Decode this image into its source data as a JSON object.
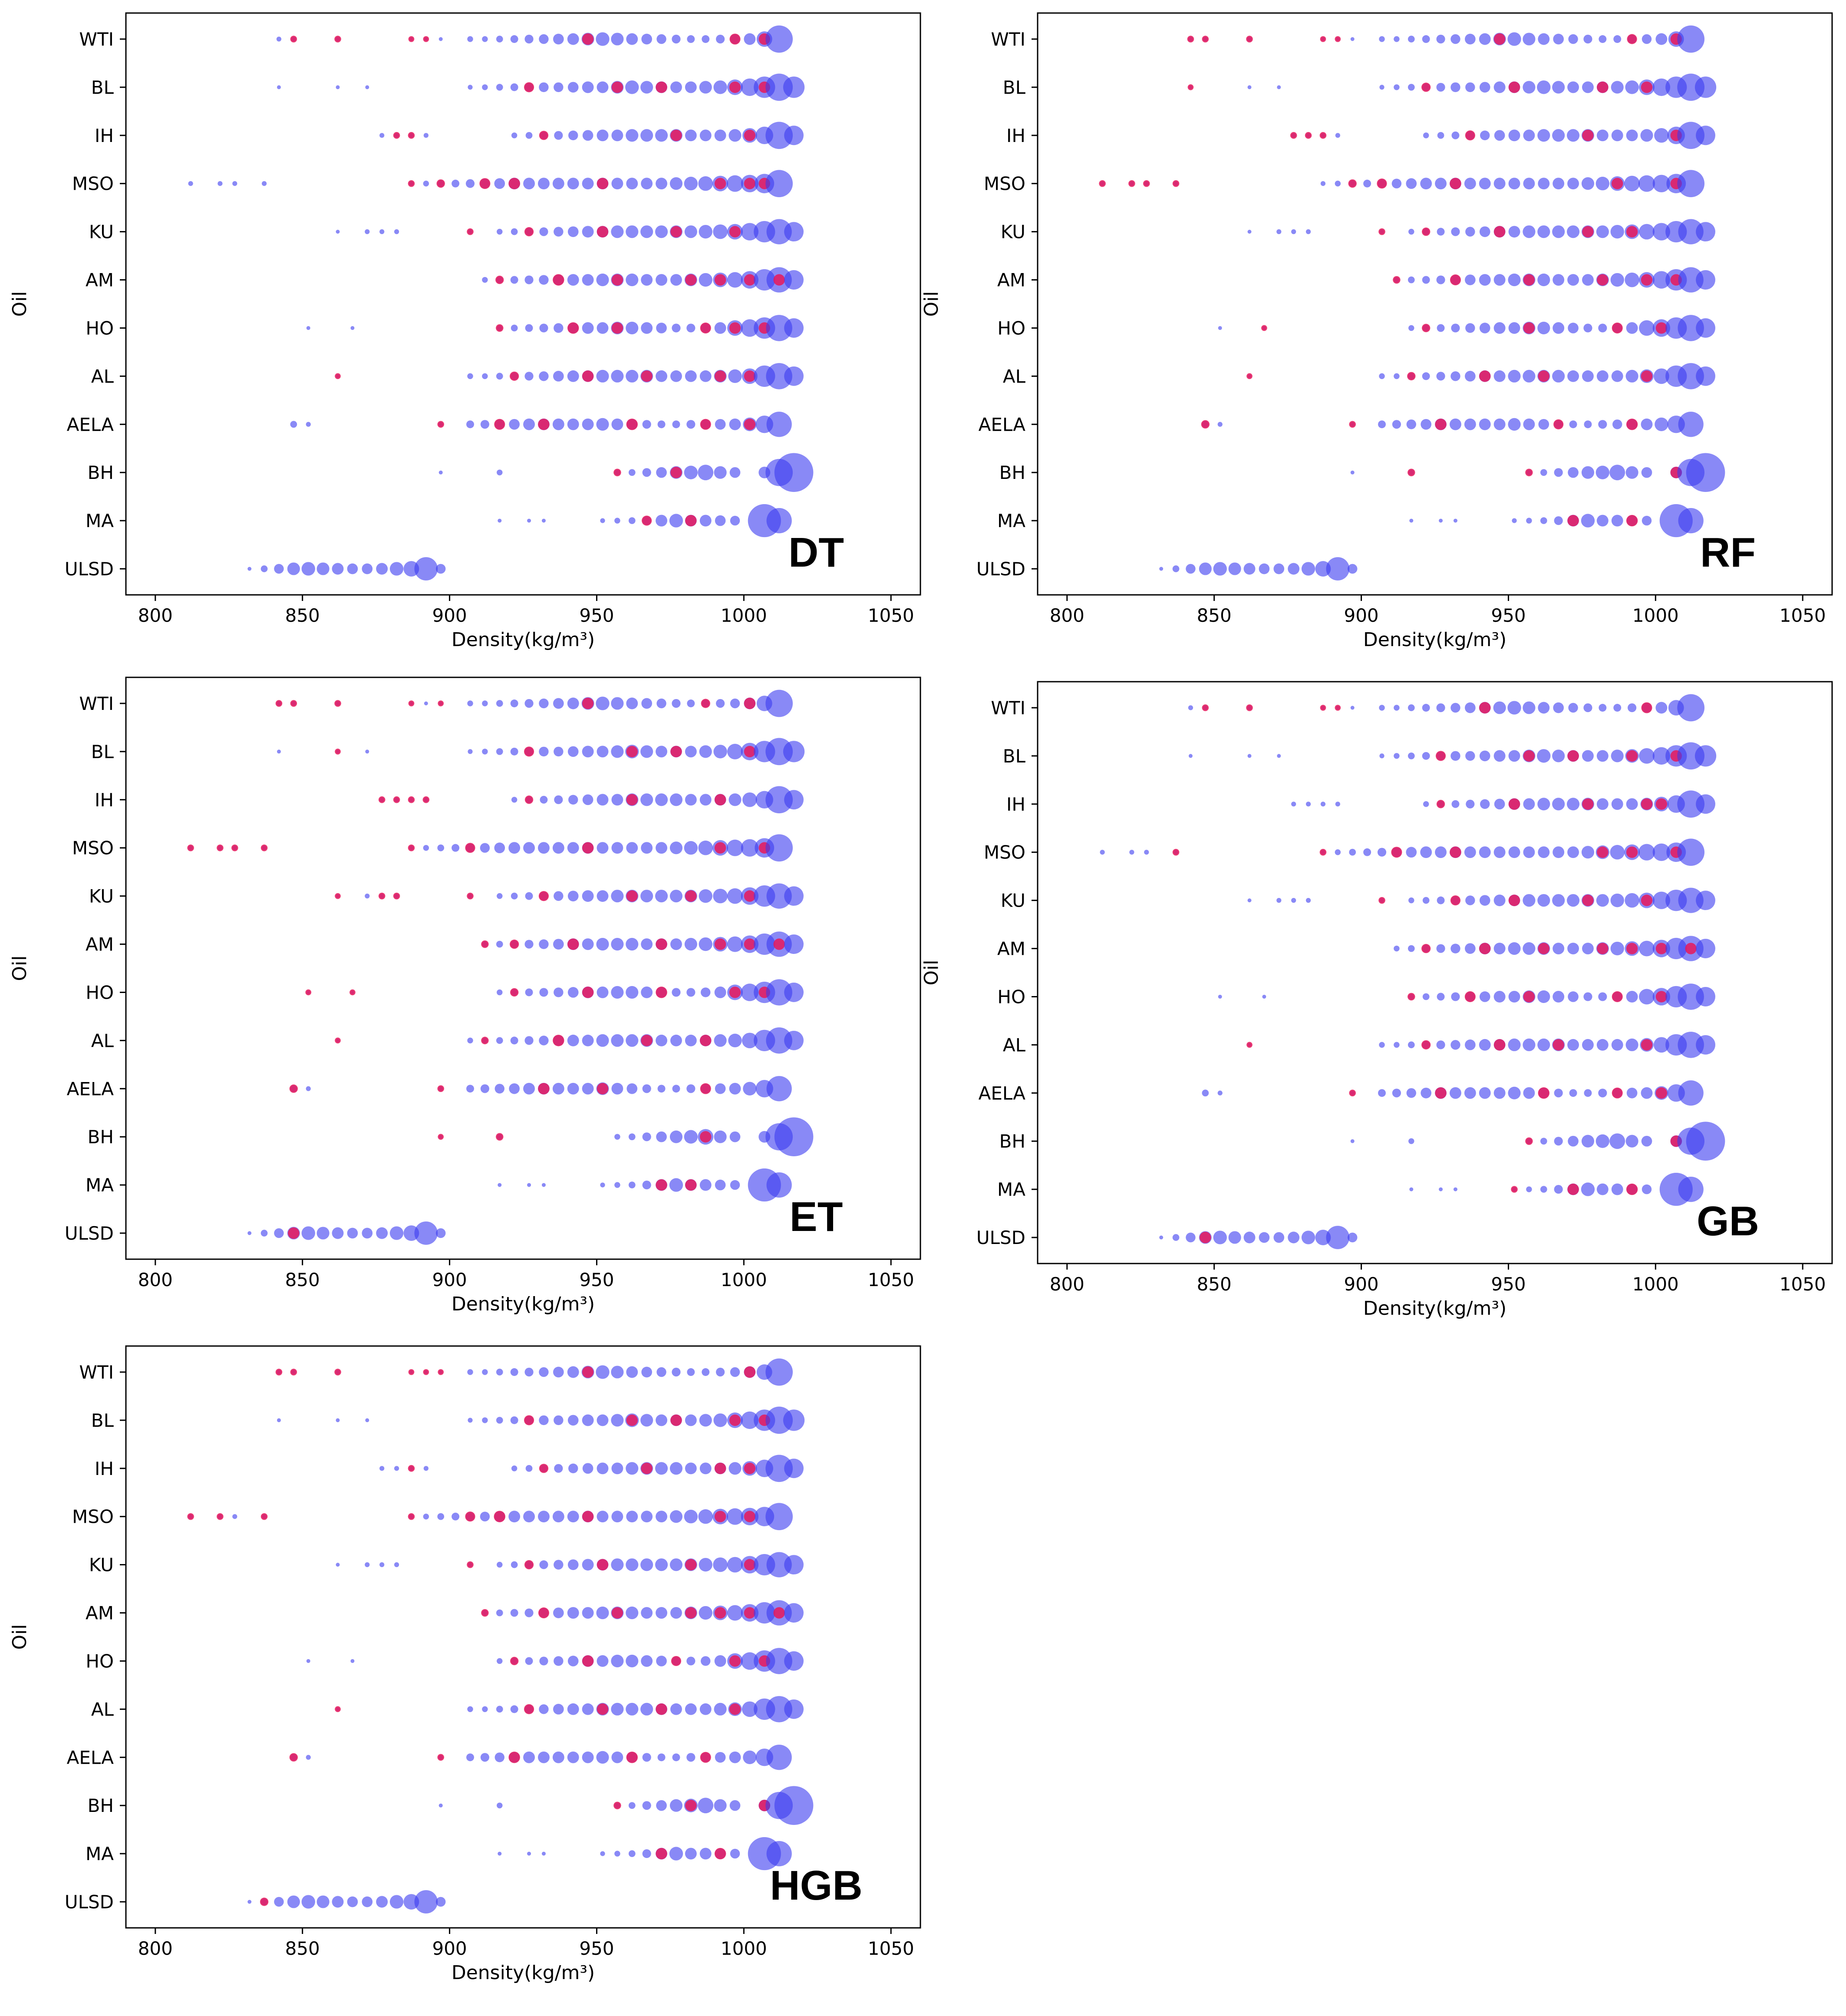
{
  "chart_data": [
    {
      "type": "scatter",
      "panel_label": "DT",
      "xlabel": "Density(kg/m³)",
      "ylabel": "Oil",
      "xlim": [
        790,
        1060
      ],
      "xticks": [
        "800",
        "850",
        "900",
        "950",
        "1000",
        "1050"
      ],
      "categories": [
        "WTI",
        "BL",
        "IH",
        "MSO",
        "KU",
        "AM",
        "HO",
        "AL",
        "AELA",
        "BH",
        "MA",
        "ULSD"
      ],
      "bubble_size": "relative",
      "series": [
        {
          "name": "",
          "color": "#3a3af0",
          "alpha": 0.6
        },
        {
          "name": "",
          "color": "#e8195a",
          "alpha": 0.85
        }
      ]
    },
    {
      "type": "scatter",
      "panel_label": "RF",
      "xlabel": "Density(kg/m³)",
      "ylabel": "Oil",
      "xlim": [
        790,
        1060
      ],
      "xticks": [
        "800",
        "850",
        "900",
        "950",
        "1000",
        "1050"
      ],
      "categories": [
        "WTI",
        "BL",
        "IH",
        "MSO",
        "KU",
        "AM",
        "HO",
        "AL",
        "AELA",
        "BH",
        "MA",
        "ULSD"
      ],
      "bubble_size": "relative",
      "series": [
        {
          "name": "",
          "color": "#3a3af0",
          "alpha": 0.6
        },
        {
          "name": "",
          "color": "#e8195a",
          "alpha": 0.85
        }
      ]
    },
    {
      "type": "scatter",
      "panel_label": "ET",
      "xlabel": "Density(kg/m³)",
      "ylabel": "Oil",
      "xlim": [
        790,
        1060
      ],
      "xticks": [
        "800",
        "850",
        "900",
        "950",
        "1000",
        "1050"
      ],
      "categories": [
        "WTI",
        "BL",
        "IH",
        "MSO",
        "KU",
        "AM",
        "HO",
        "AL",
        "AELA",
        "BH",
        "MA",
        "ULSD"
      ],
      "bubble_size": "relative",
      "series": [
        {
          "name": "",
          "color": "#3a3af0",
          "alpha": 0.6
        },
        {
          "name": "",
          "color": "#e8195a",
          "alpha": 0.85
        }
      ]
    },
    {
      "type": "scatter",
      "panel_label": "GB",
      "xlabel": "Density(kg/m³)",
      "ylabel": "Oil",
      "xlim": [
        790,
        1060
      ],
      "xticks": [
        "800",
        "850",
        "900",
        "950",
        "1000",
        "1050"
      ],
      "categories": [
        "WTI",
        "BL",
        "IH",
        "MSO",
        "KU",
        "AM",
        "HO",
        "AL",
        "AELA",
        "BH",
        "MA",
        "ULSD"
      ],
      "bubble_size": "relative",
      "series": [
        {
          "name": "",
          "color": "#3a3af0",
          "alpha": 0.6
        },
        {
          "name": "",
          "color": "#e8195a",
          "alpha": 0.85
        }
      ]
    },
    {
      "type": "scatter",
      "panel_label": "HGB",
      "xlabel": "Density(kg/m³)",
      "ylabel": "Oil",
      "xlim": [
        790,
        1060
      ],
      "xticks": [
        "800",
        "850",
        "900",
        "950",
        "1000",
        "1050"
      ],
      "categories": [
        "WTI",
        "BL",
        "IH",
        "MSO",
        "KU",
        "AM",
        "HO",
        "AL",
        "AELA",
        "BH",
        "MA",
        "ULSD"
      ],
      "bubble_size": "relative",
      "series": [
        {
          "name": "",
          "color": "#3a3af0",
          "alpha": 0.6
        },
        {
          "name": "",
          "color": "#e8195a",
          "alpha": 0.85
        }
      ]
    }
  ],
  "oil_profiles": {
    "WTI": {
      "x": [
        842,
        847,
        862,
        887,
        892,
        897,
        907,
        912,
        917,
        922,
        927,
        932,
        937,
        942,
        947,
        952,
        957,
        962,
        967,
        972,
        977,
        982,
        987,
        992,
        997,
        1002,
        1007,
        1012
      ],
      "s": [
        5,
        5,
        5,
        4,
        4,
        4,
        6,
        6,
        7,
        8,
        9,
        10,
        11,
        12,
        13,
        14,
        13,
        12,
        11,
        10,
        9,
        8,
        8,
        9,
        10,
        12,
        16,
        28
      ]
    },
    "BL": {
      "x": [
        842,
        862,
        872,
        907,
        912,
        917,
        922,
        927,
        932,
        937,
        942,
        947,
        952,
        957,
        962,
        967,
        972,
        977,
        982,
        987,
        992,
        997,
        1002,
        1007,
        1012,
        1017
      ],
      "s": [
        4,
        4,
        4,
        5,
        6,
        7,
        8,
        9,
        10,
        10,
        11,
        12,
        12,
        13,
        14,
        13,
        12,
        12,
        12,
        13,
        14,
        16,
        18,
        22,
        28,
        22
      ]
    },
    "IH": {
      "x": [
        877,
        882,
        887,
        892,
        922,
        927,
        932,
        937,
        942,
        947,
        952,
        957,
        962,
        967,
        972,
        977,
        982,
        987,
        992,
        997,
        1002,
        1007,
        1012,
        1017
      ],
      "s": [
        5,
        5,
        5,
        5,
        6,
        7,
        8,
        9,
        10,
        11,
        12,
        12,
        13,
        13,
        13,
        13,
        12,
        12,
        12,
        13,
        15,
        18,
        28,
        20
      ]
    },
    "MSO": {
      "x": [
        812,
        822,
        827,
        837,
        887,
        892,
        897,
        902,
        907,
        912,
        917,
        922,
        927,
        932,
        937,
        942,
        947,
        952,
        957,
        962,
        967,
        972,
        977,
        982,
        987,
        992,
        997,
        1002,
        1007,
        1012
      ],
      "s": [
        5,
        5,
        5,
        5,
        5,
        6,
        7,
        8,
        9,
        10,
        11,
        12,
        12,
        12,
        12,
        12,
        12,
        12,
        12,
        12,
        12,
        12,
        13,
        14,
        15,
        16,
        17,
        18,
        20,
        28
      ]
    },
    "KU": {
      "x": [
        862,
        872,
        877,
        882,
        907,
        917,
        922,
        927,
        932,
        937,
        942,
        947,
        952,
        957,
        962,
        967,
        972,
        977,
        982,
        987,
        992,
        997,
        1002,
        1007,
        1012,
        1017
      ],
      "s": [
        4,
        5,
        5,
        5,
        5,
        6,
        7,
        8,
        9,
        10,
        11,
        12,
        12,
        13,
        13,
        13,
        13,
        13,
        13,
        14,
        15,
        16,
        18,
        22,
        26,
        20
      ]
    },
    "AM": {
      "x": [
        912,
        917,
        922,
        927,
        932,
        937,
        942,
        947,
        952,
        957,
        962,
        967,
        972,
        977,
        982,
        987,
        992,
        997,
        1002,
        1007,
        1012,
        1017
      ],
      "s": [
        6,
        7,
        8,
        9,
        10,
        11,
        12,
        12,
        13,
        13,
        13,
        12,
        12,
        12,
        13,
        14,
        15,
        16,
        18,
        22,
        26,
        20
      ]
    },
    "HO": {
      "x": [
        852,
        867,
        917,
        922,
        927,
        932,
        937,
        942,
        947,
        952,
        957,
        962,
        967,
        972,
        977,
        982,
        987,
        992,
        997,
        1002,
        1007,
        1012,
        1017
      ],
      "s": [
        4,
        4,
        6,
        7,
        8,
        9,
        10,
        11,
        12,
        12,
        13,
        13,
        12,
        11,
        9,
        9,
        10,
        12,
        16,
        18,
        22,
        27,
        20
      ]
    },
    "AL": {
      "x": [
        862,
        907,
        912,
        917,
        922,
        927,
        932,
        937,
        942,
        947,
        952,
        957,
        962,
        967,
        972,
        977,
        982,
        987,
        992,
        997,
        1002,
        1007,
        1012,
        1017
      ],
      "s": [
        4,
        6,
        6,
        7,
        8,
        9,
        10,
        11,
        12,
        12,
        13,
        13,
        13,
        13,
        12,
        12,
        12,
        12,
        13,
        14,
        16,
        22,
        27,
        20
      ]
    },
    "AELA": {
      "x": [
        847,
        852,
        897,
        907,
        912,
        917,
        922,
        927,
        932,
        937,
        942,
        947,
        952,
        957,
        962,
        967,
        972,
        977,
        982,
        987,
        992,
        997,
        1002,
        1007,
        1012
      ],
      "s": [
        7,
        5,
        5,
        8,
        9,
        10,
        11,
        12,
        12,
        12,
        12,
        12,
        13,
        12,
        11,
        9,
        8,
        8,
        9,
        10,
        11,
        12,
        14,
        18,
        26
      ]
    },
    "BH": {
      "x": [
        897,
        917,
        957,
        962,
        967,
        972,
        977,
        982,
        987,
        992,
        997,
        1007,
        1012,
        1017
      ],
      "s": [
        4,
        6,
        6,
        7,
        9,
        11,
        13,
        14,
        16,
        13,
        11,
        12,
        28,
        40
      ]
    },
    "MA": {
      "x": [
        917,
        927,
        932,
        952,
        957,
        962,
        967,
        972,
        977,
        982,
        987,
        992,
        997,
        1007,
        1012
      ],
      "s": [
        4,
        4,
        4,
        5,
        6,
        7,
        9,
        12,
        14,
        12,
        12,
        11,
        10,
        34,
        26
      ]
    },
    "ULSD": {
      "x": [
        832,
        837,
        842,
        847,
        852,
        857,
        862,
        867,
        872,
        877,
        882,
        887,
        892,
        897
      ],
      "s": [
        4,
        7,
        10,
        13,
        14,
        13,
        12,
        11,
        11,
        12,
        14,
        16,
        24,
        10
      ]
    }
  },
  "highlights": {
    "DT": {
      "WTI": [
        847,
        862,
        887,
        892,
        947,
        997,
        1007
      ],
      "BL": [
        927,
        957,
        972,
        997,
        1007
      ],
      "IH": [
        882,
        887,
        932,
        977,
        1002
      ],
      "MSO": [
        887,
        897,
        912,
        922,
        952,
        992,
        1002,
        1007
      ],
      "KU": [
        907,
        927,
        952,
        977,
        997
      ],
      "AM": [
        917,
        937,
        957,
        982,
        992,
        1002,
        1012
      ],
      "HO": [
        917,
        942,
        957,
        987,
        997,
        1007
      ],
      "AL": [
        862,
        922,
        947,
        967,
        992,
        1002
      ],
      "AELA": [
        897,
        917,
        932,
        962,
        987,
        1002
      ],
      "BH": [
        957,
        977,
        1002
      ],
      "MA": [
        967,
        982,
        1002
      ],
      "ULSD": []
    },
    "RF": {
      "WTI": [
        842,
        847,
        862,
        887,
        892,
        947,
        992,
        1007
      ],
      "BL": [
        842,
        922,
        952,
        982,
        997
      ],
      "IH": [
        877,
        882,
        887,
        937,
        977,
        1007
      ],
      "MSO": [
        812,
        822,
        827,
        837,
        897,
        907,
        932,
        987,
        1007
      ],
      "KU": [
        907,
        922,
        947,
        977,
        992
      ],
      "AM": [
        912,
        932,
        957,
        982,
        997,
        1007
      ],
      "HO": [
        867,
        922,
        957,
        987,
        1002
      ],
      "AL": [
        862,
        917,
        942,
        962,
        997
      ],
      "AELA": [
        847,
        897,
        927,
        967,
        992
      ],
      "BH": [
        917,
        957,
        1007
      ],
      "MA": [
        972,
        992,
        1002
      ],
      "ULSD": []
    },
    "ET": {
      "WTI": [
        842,
        847,
        862,
        887,
        897,
        947,
        987,
        1002
      ],
      "BL": [
        862,
        927,
        962,
        977,
        1002
      ],
      "IH": [
        877,
        882,
        887,
        892,
        927,
        962,
        992
      ],
      "MSO": [
        812,
        822,
        827,
        837,
        887,
        907,
        947,
        992,
        1007
      ],
      "KU": [
        862,
        877,
        882,
        907,
        932,
        962,
        982,
        1002
      ],
      "AM": [
        912,
        922,
        942,
        972,
        992,
        1002,
        1012
      ],
      "HO": [
        852,
        867,
        922,
        947,
        972,
        997,
        1007
      ],
      "AL": [
        862,
        912,
        937,
        967,
        987
      ],
      "AELA": [
        847,
        897,
        932,
        952,
        987
      ],
      "BH": [
        897,
        917,
        987
      ],
      "MA": [
        972,
        982,
        1002
      ],
      "ULSD": [
        847
      ]
    },
    "GB": {
      "WTI": [
        847,
        862,
        887,
        892,
        942,
        997
      ],
      "BL": [
        927,
        957,
        972,
        992,
        1007
      ],
      "IH": [
        927,
        952,
        977,
        997,
        1002
      ],
      "MSO": [
        837,
        887,
        912,
        932,
        982,
        992,
        1007
      ],
      "KU": [
        907,
        932,
        952,
        977,
        997
      ],
      "AM": [
        922,
        942,
        962,
        982,
        992,
        1002,
        1012
      ],
      "HO": [
        917,
        937,
        957,
        987,
        1002
      ],
      "AL": [
        862,
        922,
        947,
        967,
        997
      ],
      "AELA": [
        897,
        927,
        962,
        987,
        1002
      ],
      "BH": [
        957,
        1007
      ],
      "MA": [
        952,
        972,
        992
      ],
      "ULSD": [
        847
      ]
    },
    "HGB": {
      "WTI": [
        842,
        847,
        862,
        887,
        892,
        897,
        947,
        1002
      ],
      "BL": [
        927,
        962,
        977,
        997,
        1007
      ],
      "IH": [
        887,
        932,
        967,
        992,
        1002
      ],
      "MSO": [
        812,
        822,
        837,
        887,
        907,
        917,
        947,
        992,
        1002
      ],
      "KU": [
        907,
        927,
        952,
        982,
        1002
      ],
      "AM": [
        912,
        932,
        957,
        982,
        992,
        1002,
        1012
      ],
      "HO": [
        922,
        947,
        977,
        997,
        1007
      ],
      "AL": [
        862,
        927,
        952,
        972,
        997
      ],
      "AELA": [
        847,
        897,
        922,
        962,
        987
      ],
      "BH": [
        957,
        982,
        1007
      ],
      "MA": [
        972,
        992,
        1002
      ],
      "ULSD": [
        837
      ]
    }
  }
}
